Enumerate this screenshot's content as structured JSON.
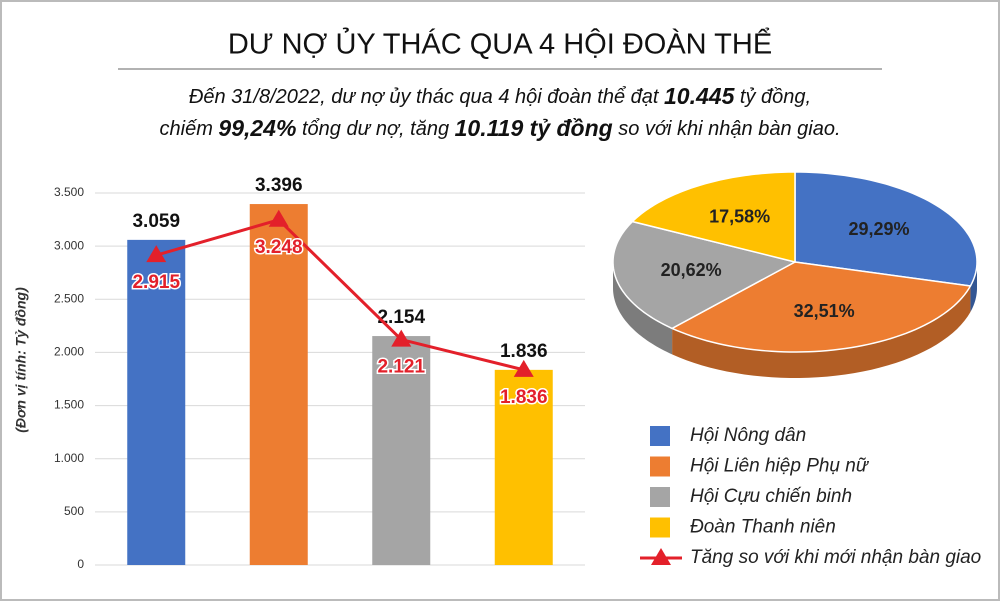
{
  "title": "DƯ NỢ ỦY THÁC QUA 4 HỘI ĐOÀN THỂ",
  "subtitle": [
    [
      {
        "text": "Đến 31/8/2022, dư nợ ủy thác qua 4 hội đoàn thể đạt ",
        "bold": false
      },
      {
        "text": "10.445",
        "bold": true
      },
      {
        "text": " tỷ đồng,",
        "bold": false
      }
    ],
    [
      {
        "text": "chiếm ",
        "bold": false
      },
      {
        "text": "99,24%",
        "bold": true
      },
      {
        "text": " tổng dư nợ, tăng ",
        "bold": false
      },
      {
        "text": "10.119 tỷ đồng",
        "bold": true
      },
      {
        "text": " so với khi nhận bàn giao.",
        "bold": false
      }
    ]
  ],
  "chart_data": [
    {
      "type": "bar",
      "y_label": "(Đơn vị tính: Tỷ đồng)",
      "ylim": [
        0,
        3500
      ],
      "yticks": [
        0,
        500,
        {
          "value": 1000,
          "label": "1.000"
        },
        {
          "value": 1500,
          "label": "1.500"
        },
        {
          "value": 2000,
          "label": "2.000"
        },
        {
          "value": 2500,
          "label": "2.500"
        },
        {
          "value": 3000,
          "label": "3.000"
        },
        {
          "value": 3500,
          "label": "3.500"
        }
      ],
      "grid": true,
      "series": [
        {
          "type": "bar",
          "colors": [
            "#4472c4",
            "#ed7d31",
            "#a5a5a5",
            "#ffc000"
          ],
          "values": [
            3059,
            3396,
            2154,
            1836
          ],
          "value_labels": [
            "3.059",
            "3.396",
            "2.154",
            "1.836"
          ]
        },
        {
          "type": "line",
          "name": "Tăng so với khi mới nhận bàn giao",
          "color": "#e3202a",
          "values": [
            2915,
            3248,
            2121,
            1836
          ],
          "value_labels": [
            "2.915",
            "3.248",
            "2.121",
            "1.836"
          ]
        }
      ]
    },
    {
      "type": "pie",
      "categories": [
        "Hội Nông dân",
        "Hội Liên hiệp Phụ nữ",
        "Hội Cựu chiến binh",
        "Đoàn Thanh niên"
      ],
      "colors": [
        "#4472c4",
        "#ed7d31",
        "#a5a5a5",
        "#ffc000"
      ],
      "values": [
        29.29,
        32.51,
        20.62,
        17.58
      ],
      "value_labels": [
        "29,29%",
        "32,51%",
        "20,62%",
        "17,58%"
      ]
    }
  ]
}
